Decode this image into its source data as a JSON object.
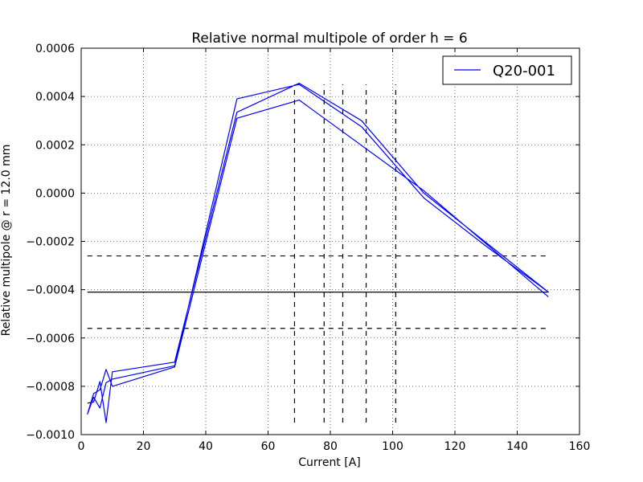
{
  "chart_data": {
    "type": "line",
    "title": "Relative normal multipole of order h = 6",
    "xlabel": "Current [A]",
    "ylabel": "Relative multipole @ r = 12.0 mm",
    "xlim": [
      0,
      160
    ],
    "ylim": [
      -0.001,
      0.0006
    ],
    "x_ticks": [
      0,
      20,
      40,
      60,
      80,
      100,
      120,
      140,
      160
    ],
    "x_tick_labels": [
      "0",
      "20",
      "40",
      "60",
      "80",
      "100",
      "120",
      "140",
      "160"
    ],
    "y_ticks": [
      -0.001,
      -0.0008,
      -0.0006,
      -0.0004,
      -0.0002,
      0.0,
      0.0002,
      0.0004,
      0.0006
    ],
    "y_tick_labels": [
      "−0.0010",
      "−0.0008",
      "−0.0006",
      "−0.0004",
      "−0.0002",
      "0.0000",
      "0.0002",
      "0.0004",
      "0.0006"
    ],
    "grid": true,
    "legend_position": "top-right",
    "series": [
      {
        "name": "Q20-001",
        "color": "#0000ff",
        "x": [
          2,
          4,
          6,
          8,
          10,
          30,
          50,
          70,
          90,
          110,
          150,
          130,
          110,
          90,
          70,
          50,
          30,
          10,
          8,
          6,
          4,
          2,
          4,
          6,
          8,
          10,
          30,
          50,
          70,
          110,
          150
        ],
        "y": [
          -0.00087,
          -0.000865,
          -0.00078,
          -0.00095,
          -0.00074,
          -0.0007,
          0.000335,
          0.000455,
          0.0003,
          0.0,
          -0.00041,
          -0.00022,
          -2e-05,
          0.000275,
          0.00045,
          0.00039,
          -0.000715,
          -0.00077,
          -0.000785,
          -0.00089,
          -0.000845,
          -0.000915,
          -0.00083,
          -0.000815,
          -0.00073,
          -0.0008,
          -0.00072,
          0.00031,
          0.000385,
          1e-05,
          -0.00043
        ]
      }
    ],
    "reference_lines": {
      "color": "#000000",
      "horizontal_solid": [
        -0.00041
      ],
      "horizontal_dashed": [
        -0.00026,
        -0.00056
      ],
      "horizontal_extent": [
        2,
        150
      ],
      "vertical_dashed": [
        68.5,
        78,
        84,
        91.5,
        101
      ],
      "vertical_extent": [
        -0.00095,
        0.00045
      ]
    }
  }
}
